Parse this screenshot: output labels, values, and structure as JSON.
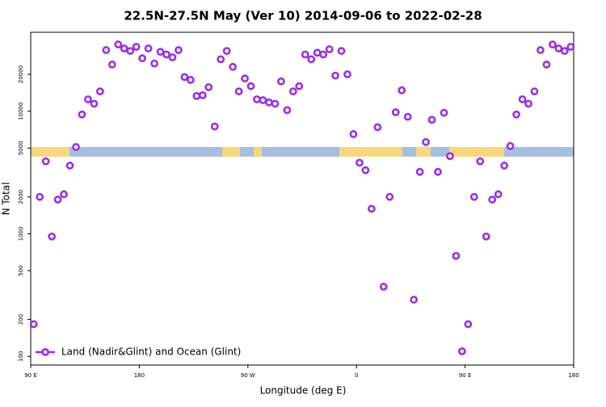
{
  "chart_data": {
    "type": "scatter",
    "title": "22.5N-27.5N May (Ver 10)   2014-09-06 to 2022-02-28",
    "x_label": "Longitude (deg E)",
    "y_label": "N Total",
    "y_scale": "log",
    "legend_position": "lower left",
    "xlim": [
      90,
      540
    ],
    "xticks": [
      {
        "value": 90,
        "label": "90 E"
      },
      180,
      {
        "value": 270,
        "label": "90 W"
      },
      {
        "value": 360,
        "label": "0"
      },
      {
        "value": 450,
        "label": "90 E"
      },
      {
        "value": 540,
        "label": "180"
      }
    ],
    "ylim": [
      85,
      44000
    ],
    "yticks": [
      100,
      200,
      500,
      1000,
      2000,
      5000,
      10000,
      20000
    ],
    "series": [
      {
        "name": "Land (Nadir&Glint) and Ocean (Glint)",
        "color": "#9b2fe6",
        "x": [
          92.5,
          97.5,
          102.5,
          107.5,
          112.5,
          117.5,
          122.5,
          127.5,
          132.5,
          137.5,
          142.5,
          147.5,
          152.5,
          157.5,
          162.5,
          167.5,
          172.5,
          177.5,
          182.5,
          187.5,
          192.5,
          197.5,
          202.5,
          207.5,
          212.5,
          217.5,
          222.5,
          227.5,
          232.5,
          237.5,
          242.5,
          247.5,
          252.5,
          257.5,
          262.5,
          267.5,
          272.5,
          277.5,
          282.5,
          287.5,
          292.5,
          297.5,
          302.5,
          307.5,
          312.5,
          317.5,
          322.5,
          327.5,
          332.5,
          337.5,
          342.5,
          347.5,
          352.5,
          357.5,
          362.5,
          367.5,
          372.5,
          377.5,
          382.5,
          387.5,
          392.5,
          397.5,
          402.5,
          407.5,
          412.5,
          417.5,
          422.5,
          427.5,
          432.5,
          437.5,
          442.5,
          447.5,
          452.5,
          457.5,
          462.5,
          467.5,
          472.5,
          477.5,
          482.5,
          487.5,
          492.5,
          497.5,
          502.5,
          507.5,
          512.5,
          517.5,
          522.5,
          527.5,
          532.5,
          537.5
        ],
        "values": [
          183,
          2000,
          3900,
          950,
          1900,
          2100,
          3600,
          5100,
          9400,
          12500,
          11500,
          14500,
          31500,
          24000,
          35000,
          32500,
          31000,
          33500,
          27000,
          32500,
          24500,
          30500,
          29000,
          27500,
          31500,
          19000,
          18000,
          13300,
          13500,
          15700,
          7500,
          26500,
          31000,
          23000,
          14500,
          18500,
          16000,
          12500,
          12300,
          11800,
          11500,
          17500,
          10200,
          14500,
          16000,
          29000,
          26500,
          30000,
          29000,
          32000,
          19500,
          31000,
          20000,
          6500,
          3800,
          3300,
          1600,
          7400,
          370,
          2000,
          9800,
          14800,
          9000,
          290,
          3200,
          5600,
          8500,
          3200,
          9700,
          4300,
          660,
          110,
          183,
          2000,
          3900,
          950,
          1900,
          2100,
          3600,
          5200,
          9400,
          12500,
          11500,
          14500,
          31500,
          24000,
          35000,
          32500,
          31000,
          33500
        ]
      }
    ]
  }
}
